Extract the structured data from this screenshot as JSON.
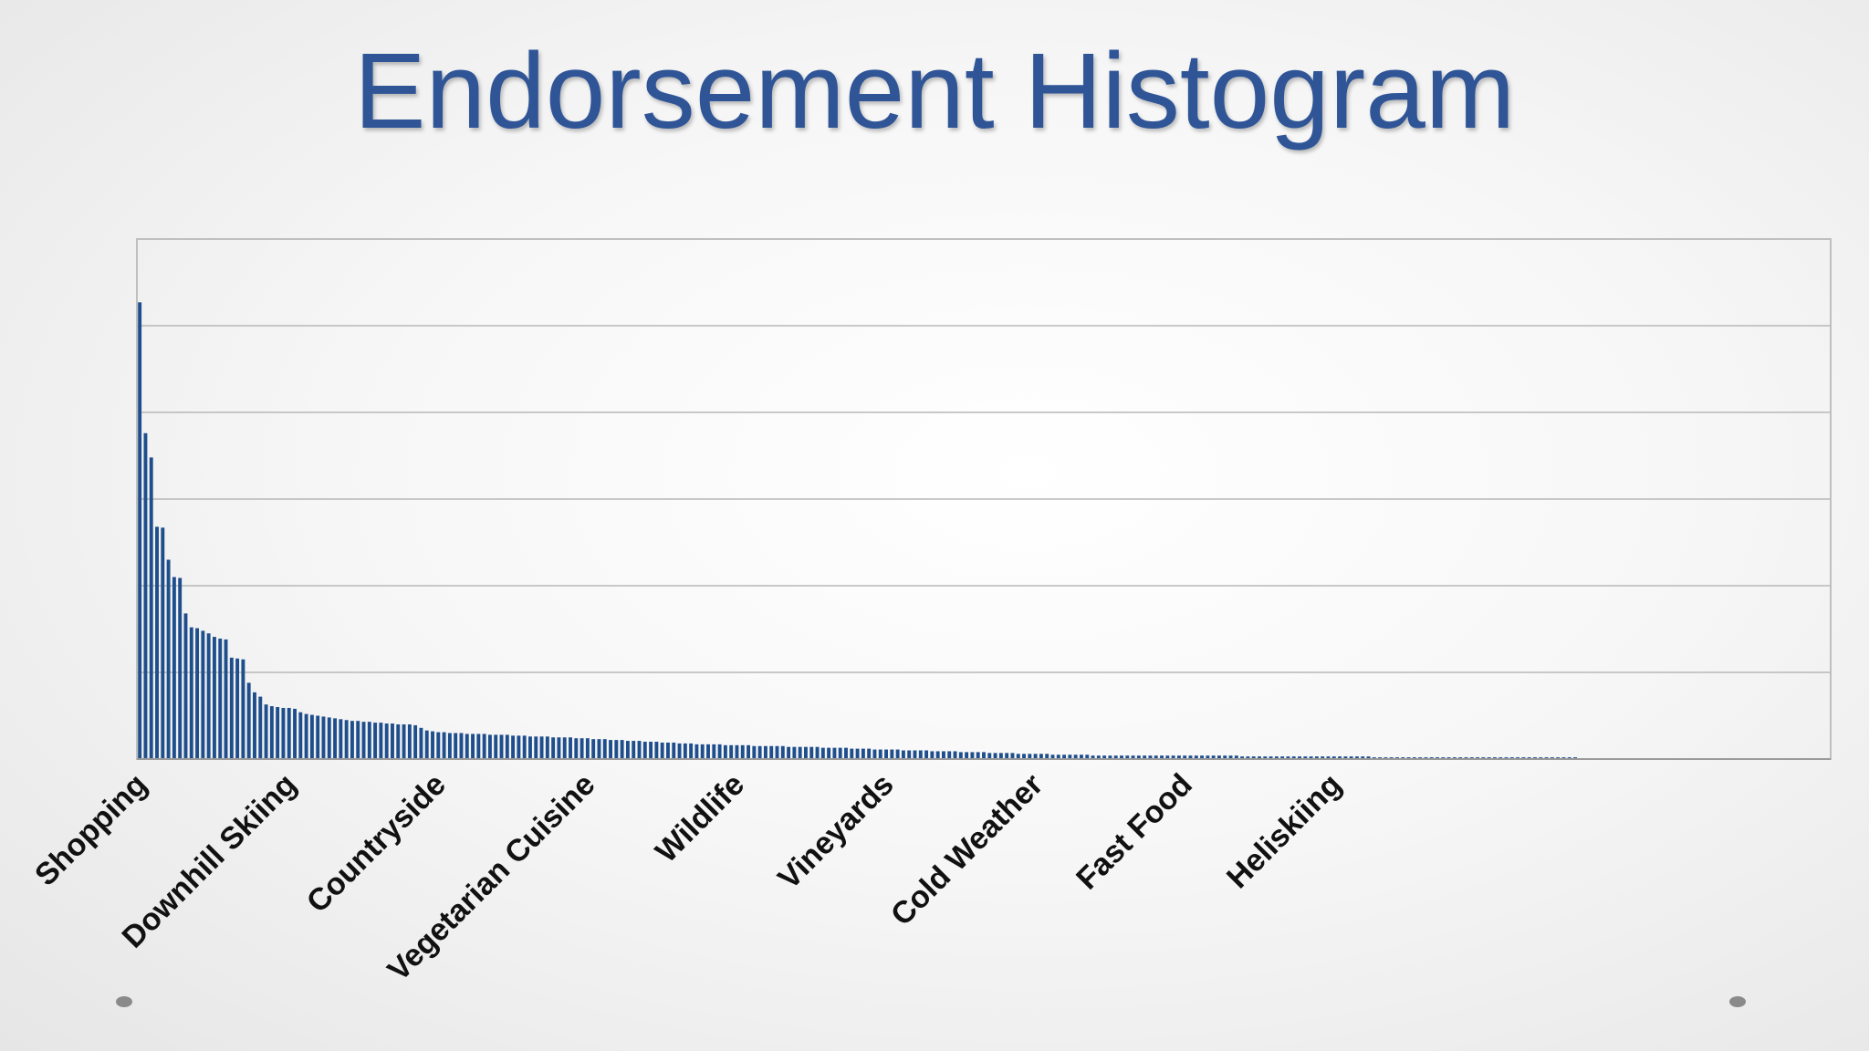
{
  "slide": {
    "title": "Endorsement Histogram",
    "title_color": "#2F5597"
  },
  "chart_data": {
    "type": "bar",
    "title": "",
    "xlabel": "",
    "ylabel": "",
    "ylim": [
      0,
      6
    ],
    "grid": true,
    "bar_color": "#1F4E8C",
    "tick_labels": [
      "Shopping",
      "Downhill Skiing",
      "Countryside",
      "Vegetarian Cuisine",
      "Wildlife",
      "Vineyards",
      "Cold Weather",
      "Fast Food",
      "Heliskiing"
    ],
    "tick_label_every": 26,
    "values": [
      5.27,
      3.76,
      3.48,
      2.68,
      2.67,
      2.3,
      2.1,
      2.09,
      1.68,
      1.52,
      1.51,
      1.48,
      1.45,
      1.41,
      1.39,
      1.38,
      1.17,
      1.16,
      1.15,
      0.88,
      0.77,
      0.72,
      0.63,
      0.61,
      0.6,
      0.59,
      0.59,
      0.58,
      0.54,
      0.52,
      0.51,
      0.5,
      0.49,
      0.48,
      0.47,
      0.46,
      0.45,
      0.44,
      0.44,
      0.43,
      0.43,
      0.42,
      0.42,
      0.41,
      0.41,
      0.4,
      0.4,
      0.4,
      0.39,
      0.36,
      0.33,
      0.32,
      0.31,
      0.31,
      0.3,
      0.3,
      0.3,
      0.29,
      0.29,
      0.29,
      0.29,
      0.28,
      0.28,
      0.28,
      0.28,
      0.27,
      0.27,
      0.27,
      0.26,
      0.26,
      0.26,
      0.26,
      0.25,
      0.25,
      0.25,
      0.25,
      0.24,
      0.24,
      0.24,
      0.23,
      0.23,
      0.23,
      0.22,
      0.22,
      0.22,
      0.21,
      0.21,
      0.21,
      0.2,
      0.2,
      0.2,
      0.19,
      0.19,
      0.19,
      0.18,
      0.18,
      0.18,
      0.17,
      0.17,
      0.17,
      0.17,
      0.17,
      0.16,
      0.16,
      0.16,
      0.16,
      0.16,
      0.15,
      0.15,
      0.15,
      0.15,
      0.15,
      0.15,
      0.14,
      0.14,
      0.14,
      0.14,
      0.14,
      0.14,
      0.13,
      0.13,
      0.13,
      0.13,
      0.13,
      0.12,
      0.12,
      0.12,
      0.12,
      0.11,
      0.11,
      0.11,
      0.11,
      0.11,
      0.1,
      0.1,
      0.1,
      0.1,
      0.1,
      0.09,
      0.09,
      0.09,
      0.09,
      0.09,
      0.08,
      0.08,
      0.08,
      0.08,
      0.08,
      0.07,
      0.07,
      0.07,
      0.07,
      0.07,
      0.06,
      0.06,
      0.06,
      0.06,
      0.06,
      0.06,
      0.05,
      0.05,
      0.05,
      0.05,
      0.05,
      0.05,
      0.05,
      0.04,
      0.04,
      0.04,
      0.04,
      0.04,
      0.04,
      0.04,
      0.04,
      0.04,
      0.04,
      0.04,
      0.04,
      0.04,
      0.04,
      0.04,
      0.04,
      0.04,
      0.04,
      0.04,
      0.04,
      0.04,
      0.04,
      0.04,
      0.04,
      0.04,
      0.04,
      0.03,
      0.03,
      0.03,
      0.03,
      0.03,
      0.03,
      0.03,
      0.03,
      0.03,
      0.03,
      0.03,
      0.03,
      0.03,
      0.03,
      0.03,
      0.03,
      0.03,
      0.03,
      0.03,
      0.03,
      0.03,
      0.03,
      0.03,
      0.02,
      0.02,
      0.02,
      0.02,
      0.02,
      0.02,
      0.02,
      0.02,
      0.02,
      0.02,
      0.02,
      0.02,
      0.02,
      0.02,
      0.02,
      0.02,
      0.02,
      0.02,
      0.02,
      0.02,
      0.02,
      0.02,
      0.02,
      0.02,
      0.02,
      0.02,
      0.02,
      0.02,
      0.02,
      0.02,
      0.02,
      0.02,
      0.02,
      0.02,
      0.02,
      0.02,
      0.01,
      0.01,
      0.01,
      0.01,
      0.01,
      0.01,
      0.01,
      0.01,
      0.01,
      0.01,
      0.01,
      0.01,
      0.01,
      0.01,
      0.01,
      0.01,
      0.01,
      0.01,
      0.01,
      0.01,
      0.01,
      0.01,
      0.01,
      0.01,
      0.01,
      0.01,
      0.01,
      0.01,
      0.01,
      0.01,
      0.01,
      0.01,
      0.01,
      0.01,
      0.01,
      0.01,
      0.01,
      0.01,
      0.01,
      0.01,
      0.01,
      0.01,
      0.01,
      0.01
    ]
  }
}
